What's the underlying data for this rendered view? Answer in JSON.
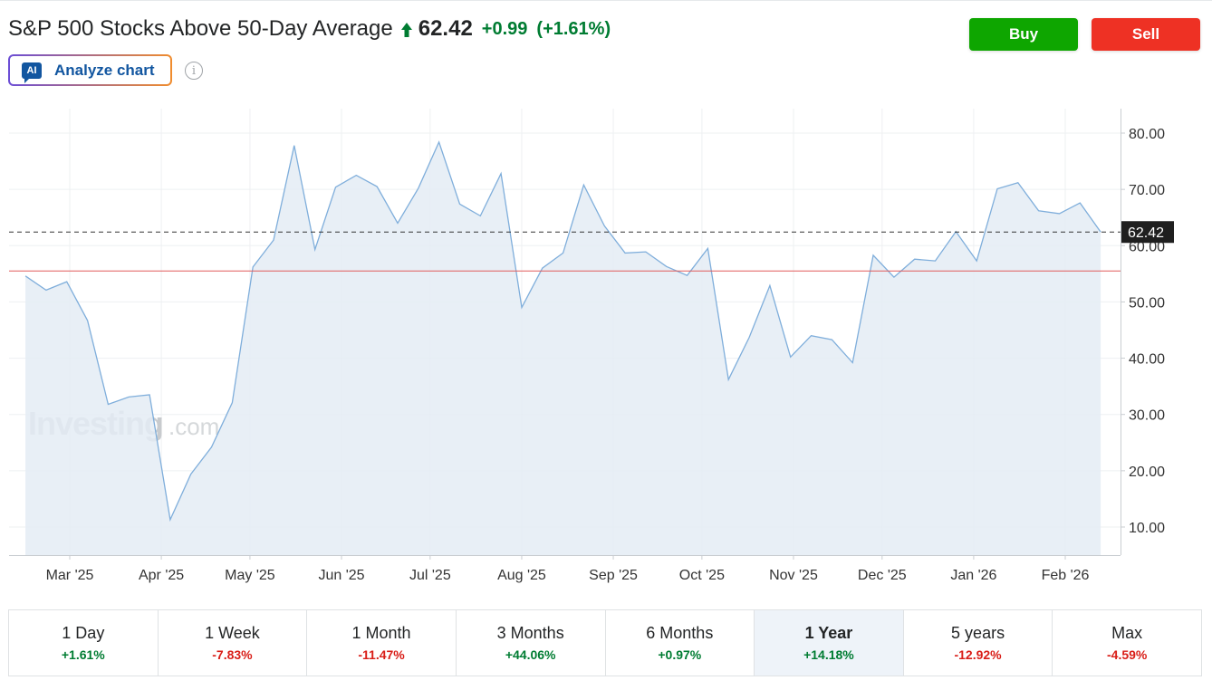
{
  "header": {
    "title": "S&P 500 Stocks Above 50-Day Average",
    "price": "62.42",
    "change": "+0.99",
    "change_pct": "(+1.61%)",
    "direction_icon": "arrow-up-icon",
    "colors": {
      "positive": "#007c32",
      "negative": "#d91e18"
    }
  },
  "actions": {
    "buy_label": "Buy",
    "sell_label": "Sell",
    "buy_color": "#0ea600",
    "sell_color": "#ee3124"
  },
  "analyze": {
    "badge": "AI",
    "label": "Analyze chart",
    "info_icon": "info-icon"
  },
  "watermark": {
    "brand": "Investing",
    "suffix": ".com"
  },
  "chart_data": {
    "type": "area",
    "title": "",
    "xlabel": "",
    "ylabel": "",
    "ylim": [
      5,
      84
    ],
    "y_ticks": [
      "80.00",
      "70.00",
      "60.00",
      "50.00",
      "40.00",
      "30.00",
      "20.00",
      "10.00"
    ],
    "x_ticks": [
      "Mar '25",
      "Apr '25",
      "May '25",
      "Jun '25",
      "Jul '25",
      "Aug '25",
      "Sep '25",
      "Oct '25",
      "Nov '25",
      "Dec '25",
      "Jan '26",
      "Feb '26"
    ],
    "x_tick_dates": [
      "2025-03-01",
      "2025-04-01",
      "2025-05-01",
      "2025-06-01",
      "2025-07-01",
      "2025-08-01",
      "2025-09-01",
      "2025-10-01",
      "2025-11-01",
      "2025-12-01",
      "2026-01-01",
      "2026-02-01"
    ],
    "series": [
      {
        "x": [
          "2025-02-14",
          "2025-02-21",
          "2025-02-28",
          "2025-03-07",
          "2025-03-14",
          "2025-03-21",
          "2025-03-28",
          "2025-04-04",
          "2025-04-11",
          "2025-04-18",
          "2025-04-25",
          "2025-05-02",
          "2025-05-09",
          "2025-05-16",
          "2025-05-23",
          "2025-05-30",
          "2025-06-06",
          "2025-06-13",
          "2025-06-20",
          "2025-06-27",
          "2025-07-04",
          "2025-07-11",
          "2025-07-18",
          "2025-07-25",
          "2025-08-01",
          "2025-08-08",
          "2025-08-15",
          "2025-08-22",
          "2025-08-29",
          "2025-09-05",
          "2025-09-12",
          "2025-09-19",
          "2025-09-26",
          "2025-10-03",
          "2025-10-10",
          "2025-10-17",
          "2025-10-24",
          "2025-10-31",
          "2025-11-07",
          "2025-11-14",
          "2025-11-21",
          "2025-11-28",
          "2025-12-05",
          "2025-12-12",
          "2025-12-19",
          "2025-12-26",
          "2026-01-02",
          "2026-01-09",
          "2026-01-16",
          "2026-01-23",
          "2026-01-30",
          "2026-02-06",
          "2026-02-13"
        ],
        "values": [
          54.6,
          52.1,
          53.6,
          46.7,
          31.8,
          33.1,
          33.5,
          11.3,
          19.4,
          24.2,
          32.1,
          56.2,
          61.0,
          77.8,
          59.3,
          70.4,
          72.5,
          70.5,
          64.0,
          70.2,
          78.4,
          67.4,
          65.3,
          72.8,
          49.0,
          56.0,
          58.7,
          70.8,
          63.5,
          58.7,
          58.9,
          56.3,
          54.7,
          59.5,
          36.2,
          43.7,
          52.9,
          40.2,
          44.0,
          43.3,
          39.2,
          58.3,
          54.4,
          57.6,
          57.3,
          62.5,
          57.3,
          70.1,
          71.2,
          66.2,
          65.7,
          67.6,
          62.42
        ]
      }
    ],
    "last_value_label": "62.42",
    "reference_level": 55.5,
    "grid": true,
    "colors": {
      "line": "#7faedb",
      "fill": "#e4ecf5",
      "reference_line": "#e05c5c",
      "last_line": "#333333",
      "last_label_bg": "#1f1f1f"
    }
  },
  "periods": [
    {
      "label": "1 Day",
      "value": "+1.61%",
      "dir": "up"
    },
    {
      "label": "1 Week",
      "value": "-7.83%",
      "dir": "down"
    },
    {
      "label": "1 Month",
      "value": "-11.47%",
      "dir": "down"
    },
    {
      "label": "3 Months",
      "value": "+44.06%",
      "dir": "up"
    },
    {
      "label": "6 Months",
      "value": "+0.97%",
      "dir": "up"
    },
    {
      "label": "1 Year",
      "value": "+14.18%",
      "dir": "up",
      "active": true
    },
    {
      "label": "5 years",
      "value": "-12.92%",
      "dir": "down"
    },
    {
      "label": "Max",
      "value": "-4.59%",
      "dir": "down"
    }
  ]
}
